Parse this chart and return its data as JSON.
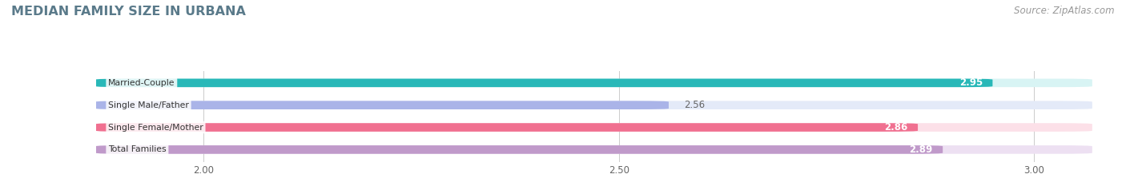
{
  "title": "MEDIAN FAMILY SIZE IN URBANA",
  "source": "Source: ZipAtlas.com",
  "categories": [
    "Married-Couple",
    "Single Male/Father",
    "Single Female/Mother",
    "Total Families"
  ],
  "values": [
    2.95,
    2.56,
    2.86,
    2.89
  ],
  "bar_colors": [
    "#29b8b8",
    "#aab4e8",
    "#f07090",
    "#c09aca"
  ],
  "bar_bg_colors": [
    "#d8f4f4",
    "#e4eaf8",
    "#fce0e8",
    "#ede0f2"
  ],
  "label_colors": [
    "#ffffff",
    "#666666",
    "#ffffff",
    "#ffffff"
  ],
  "xlim_min": 1.87,
  "xlim_max": 3.07,
  "xticks": [
    2.0,
    2.5,
    3.0
  ],
  "xtick_labels": [
    "2.00",
    "2.50",
    "3.00"
  ],
  "background_color": "#ffffff",
  "title_color": "#5a7a8a",
  "title_fontsize": 11.5,
  "source_fontsize": 8.5,
  "bar_height": 0.38,
  "value_inside_color": "#ffffff",
  "value_outside_color": "#666666"
}
